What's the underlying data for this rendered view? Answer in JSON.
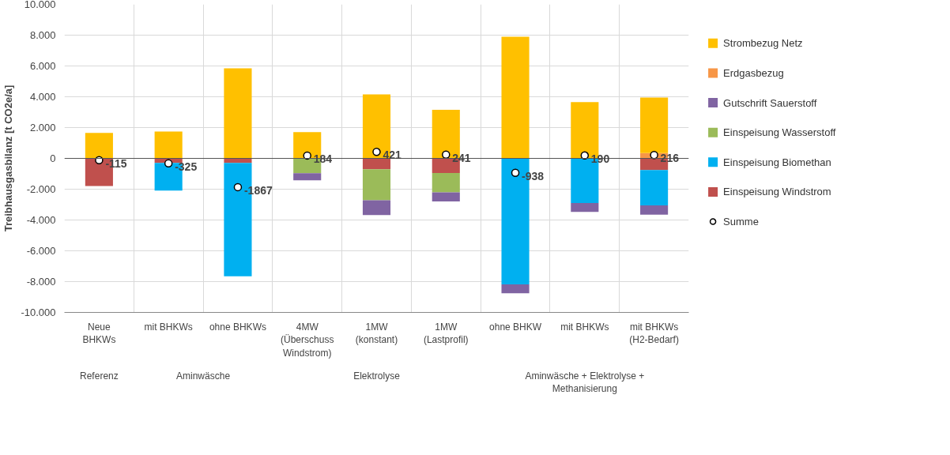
{
  "chart_data": {
    "type": "bar",
    "stacked": true,
    "ylabel": "Treibhausgasbilanz [t CO2e/a]",
    "categories": [
      "Neue\nBHKWs",
      "mit BHKWs",
      "ohne BHKWs",
      "4MW\n(Überschuss\nWindstrom)",
      "1MW\n(konstant)",
      "1MW\n(Lastprofil)",
      "ohne BHKW",
      "mit BHKWs",
      "mit BHKWs\n(H2-Bedarf)"
    ],
    "annotations": [
      "Referenz",
      "Aminwäsche",
      "Elektrolyse",
      "Aminwäsche + Elektrolyse +\nMethanisierung"
    ],
    "series": [
      {
        "name": "Einspeisung Windstrom",
        "color": "#c0504d",
        "values": [
          -1800,
          -300,
          -300,
          0,
          -700,
          -950,
          0,
          0,
          -750
        ]
      },
      {
        "name": "Einspeisung Biomethan",
        "color": "#00b0f0",
        "values": [
          0,
          -1790,
          -7350,
          0,
          0,
          0,
          -8180,
          -2900,
          -2300
        ]
      },
      {
        "name": "Einspeisung Wasserstoff",
        "color": "#9bbb59",
        "values": [
          0,
          0,
          0,
          -960,
          -2020,
          -1260,
          0,
          0,
          0
        ]
      },
      {
        "name": "Gutschrift Sauerstoff",
        "color": "#8064a2",
        "values": [
          0,
          0,
          0,
          -460,
          -960,
          -580,
          -580,
          -570,
          -600
        ]
      },
      {
        "name": "Erdgasbezug",
        "color": "#f79646",
        "values": [
          null,
          null,
          0,
          0,
          0,
          0,
          0,
          null,
          350
        ]
      },
      {
        "name": "Strombezug Netz",
        "color": "#ffc000",
        "values": [
          1650,
          1750,
          5850,
          1700,
          4150,
          3150,
          7900,
          3650,
          3600
        ]
      },
      {
        "name": "Summe",
        "type": "scatter",
        "marker": "circle",
        "color": "#ffffff",
        "values": [
          -115,
          -325,
          -1867,
          184,
          421,
          241,
          -938,
          190,
          216
        ],
        "value_labels": [
          "-115",
          "-325",
          "-1867",
          "184",
          "421",
          "241",
          "-938",
          "190",
          "216"
        ]
      }
    ],
    "ylim": [
      -10000,
      10000
    ],
    "yticks": [
      {
        "value": -10000,
        "label": "-10.000"
      },
      {
        "value": -8000,
        "label": "-8.000"
      },
      {
        "value": -6000,
        "label": "-6.000"
      },
      {
        "value": -4000,
        "label": "-4.000"
      },
      {
        "value": -2000,
        "label": "-2.000"
      },
      0,
      {
        "value": 2000,
        "label": "2.000"
      },
      {
        "value": 4000,
        "label": "4.000"
      },
      {
        "value": 6000,
        "label": "6.000"
      },
      {
        "value": 8000,
        "label": "8.000"
      },
      {
        "value": 10000,
        "label": "10.000"
      }
    ],
    "grid": true,
    "legend": "right"
  }
}
